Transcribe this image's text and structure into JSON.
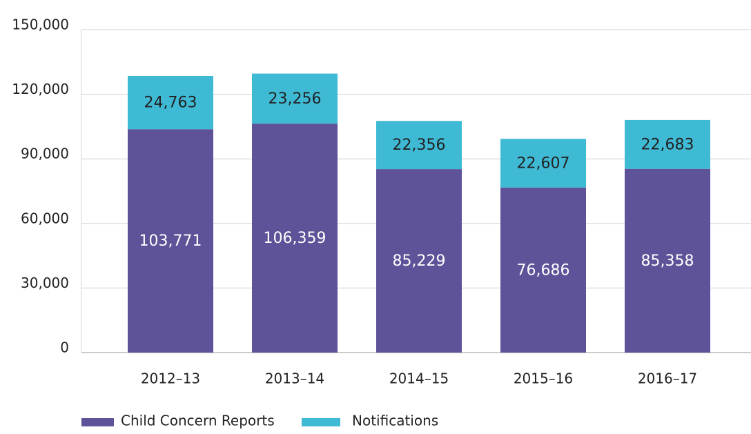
{
  "chart_data": {
    "type": "stacked_bar",
    "categories": [
      "2012–13",
      "2013–14",
      "2014–15",
      "2015–16",
      "2016–17"
    ],
    "series": [
      {
        "name": "Child Concern Reports",
        "color": "#5e5398",
        "values": [
          103771,
          106359,
          85229,
          76686,
          85358
        ],
        "value_labels": [
          "103,771",
          "106,359",
          "85,229",
          "76,686",
          "85,358"
        ]
      },
      {
        "name": "Notifications",
        "color": "#3fbad5",
        "values": [
          24763,
          23256,
          22356,
          22607,
          22683
        ],
        "value_labels": [
          "24,763",
          "23,256",
          "22,356",
          "22,607",
          "22,683"
        ]
      }
    ],
    "ylim": [
      0,
      150000
    ],
    "yticks": [
      0,
      {
        "value": 30000,
        "label": "30,000"
      },
      {
        "value": 60000,
        "label": "60,000"
      },
      {
        "value": 90000,
        "label": "90,000"
      },
      {
        "value": 120000,
        "label": "120,000"
      },
      {
        "value": 150000,
        "label": "150,000"
      }
    ],
    "grid": true,
    "legend": "bottom"
  }
}
